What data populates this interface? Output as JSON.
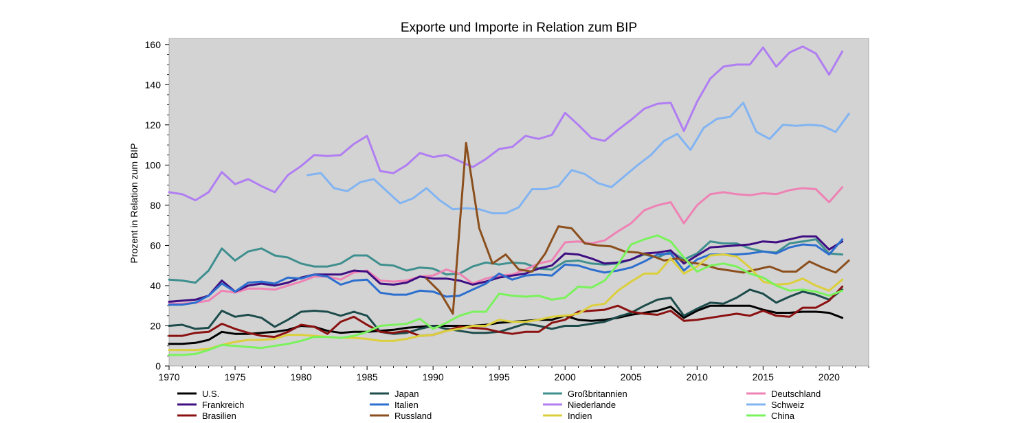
{
  "chart_data": {
    "type": "line",
    "title": "Exporte und Importe in Relation zum BIP",
    "xlabel": "",
    "ylabel": "Prozent in Relation zum BIP",
    "xlim": [
      1970,
      2023
    ],
    "ylim": [
      0,
      163
    ],
    "xticks": [
      "1970",
      "1975",
      "1980",
      "1985",
      "1990",
      "1995",
      "2000",
      "2005",
      "2010",
      "2015",
      "2020"
    ],
    "yticks": [
      "0",
      "20",
      "40",
      "60",
      "80",
      "100",
      "120",
      "140",
      "160"
    ],
    "grid": false,
    "background": "#d3d3d3",
    "legend_position": "bottom",
    "series": [
      {
        "name": "U.S.",
        "color": "#000000",
        "x_start": 1970,
        "values": [
          11,
          11,
          11.5,
          13,
          17,
          16,
          16,
          16.5,
          17,
          18,
          20,
          19.5,
          17.5,
          16.5,
          17,
          17,
          17.5,
          18,
          19,
          19.5,
          20,
          20,
          20,
          20,
          20.5,
          21.5,
          22,
          22.5,
          23,
          23,
          25,
          23,
          22.5,
          23,
          24,
          25.5,
          26.5,
          27.5,
          29.5,
          24,
          27.5,
          30,
          30,
          30,
          30,
          28,
          26.5,
          26.5,
          27,
          27,
          26.5,
          24
        ]
      },
      {
        "name": "Japan",
        "color": "#1d4b4b",
        "x_start": 1970,
        "values": [
          20,
          20.5,
          18.5,
          19,
          27.5,
          24.5,
          25.5,
          24,
          19.5,
          23,
          27,
          27.5,
          27,
          25,
          27,
          25,
          17,
          16,
          16.5,
          18.5,
          20,
          18.5,
          17.5,
          16.5,
          16.5,
          17,
          19,
          21,
          20,
          18.5,
          20,
          20,
          21,
          22,
          24.5,
          26.5,
          30,
          33,
          34,
          25,
          28.5,
          31.5,
          31,
          34,
          38,
          36,
          31.5,
          34.5,
          37,
          35.5,
          33,
          38
        ]
      },
      {
        "name": "Großbritannien",
        "color": "#3f8f8f",
        "x_start": 1970,
        "values": [
          43,
          42.5,
          41.5,
          47.5,
          58.5,
          52.5,
          57,
          58.5,
          55,
          54,
          51,
          49.5,
          49.5,
          51,
          55,
          55,
          50.5,
          50,
          47.5,
          49,
          48.5,
          45.5,
          46,
          49.5,
          51.5,
          50.5,
          51.5,
          51,
          48.5,
          48,
          52,
          52.5,
          51,
          50.5,
          51,
          53,
          55.5,
          54,
          57,
          53,
          56,
          62,
          61,
          61,
          58.5,
          57,
          56.5,
          61,
          62,
          63,
          56,
          55.5
        ]
      },
      {
        "name": "Deutschland",
        "color": "#ee82b4",
        "x_start": 1970,
        "values": [
          31,
          31,
          31.5,
          32.5,
          37.5,
          36.5,
          38.5,
          38.5,
          38,
          40,
          42,
          44.5,
          44.5,
          43,
          46.5,
          47.5,
          42.5,
          42,
          42.5,
          44.5,
          45,
          48,
          46,
          41,
          43.5,
          45,
          45.5,
          48,
          51,
          52.5,
          61.5,
          62,
          61,
          62.5,
          67,
          71,
          77.5,
          80,
          81.5,
          71,
          80,
          85.5,
          86.5,
          85.5,
          85,
          86,
          85.5,
          87.5,
          88.5,
          88,
          81.5,
          89
        ]
      },
      {
        "name": "Frankreich",
        "color": "#3e0e82",
        "x_start": 1970,
        "values": [
          32,
          32.5,
          33,
          35,
          42.5,
          37,
          40,
          41,
          40,
          41.5,
          44,
          45.5,
          45.5,
          45.5,
          47.5,
          47,
          41,
          40.5,
          41.5,
          44.5,
          43.5,
          43.5,
          42.5,
          40.5,
          42,
          44,
          45,
          46,
          48.5,
          50,
          56,
          55.5,
          53.5,
          51,
          51.5,
          53,
          56,
          56.5,
          57.5,
          51,
          55,
          59,
          59.5,
          60,
          60.5,
          62,
          61.5,
          63,
          64.5,
          64.5,
          58,
          62
        ]
      },
      {
        "name": "Italien",
        "color": "#2d6fcf",
        "x_start": 1970,
        "values": [
          30.5,
          30.5,
          31.5,
          35,
          41,
          37,
          41.5,
          42,
          41,
          44,
          43.5,
          45.5,
          44.5,
          40.5,
          42.5,
          43,
          36.5,
          35.5,
          35.5,
          37.5,
          37,
          34.5,
          35,
          38,
          41,
          46,
          43,
          45,
          45.5,
          45,
          50.5,
          50,
          48,
          46.5,
          47.5,
          49,
          52,
          55.5,
          56,
          47.5,
          53,
          55.5,
          55.5,
          55.5,
          56,
          57,
          56,
          59,
          60.5,
          60,
          55.5,
          63
        ]
      },
      {
        "name": "Niederlande",
        "color": "#b07ef2",
        "x_start": 1970,
        "values": [
          86.5,
          85.5,
          82.5,
          86.5,
          96.5,
          90.5,
          93,
          89.5,
          86.5,
          95,
          99.5,
          105,
          104.5,
          105,
          110.5,
          114.5,
          97,
          96,
          100,
          106,
          104,
          105,
          102,
          99,
          103,
          108,
          109,
          114.5,
          113,
          115,
          126,
          120,
          113.5,
          112,
          117.5,
          122.5,
          128,
          130.5,
          131,
          117,
          131.5,
          143,
          149,
          150,
          150,
          158.5,
          149,
          156,
          159,
          155.5,
          145,
          156.5
        ]
      },
      {
        "name": "Schweiz",
        "color": "#82b4f2",
        "x_start": 1980.5,
        "values": [
          95,
          96,
          88.5,
          87,
          91.5,
          93,
          87,
          81,
          83.5,
          88.5,
          82.5,
          78,
          78.5,
          78,
          76,
          76,
          79,
          88,
          88,
          89.5,
          97.5,
          95.5,
          91,
          89,
          94.5,
          100,
          105,
          112,
          115.5,
          107.5,
          118.5,
          123,
          124,
          131,
          116.5,
          113,
          120,
          119.5,
          120,
          119.5,
          116.5,
          125.5
        ]
      },
      {
        "name": "Brasilien",
        "color": "#8b1111",
        "x_start": 1970,
        "values": [
          15,
          15,
          16.5,
          17,
          21,
          18.5,
          16.5,
          15,
          14.5,
          17,
          20.5,
          19.5,
          16,
          22,
          24.5,
          20.5,
          17,
          16.5,
          17.5,
          15,
          15.5,
          17.5,
          19.5,
          19,
          18.5,
          17,
          16,
          17,
          17,
          21.5,
          23,
          27,
          27.5,
          28,
          30,
          27,
          26,
          25.5,
          27.5,
          22.5,
          23,
          24,
          25,
          26,
          25,
          27.5,
          25,
          24.5,
          29,
          29,
          32.5,
          39.5
        ]
      },
      {
        "name": "Russland",
        "color": "#8b4f1d",
        "x_start": 1989.5,
        "values": [
          43.5,
          37,
          26,
          111,
          68.5,
          51,
          55.5,
          48,
          47,
          56,
          69.5,
          68.5,
          61,
          60,
          59.5,
          57,
          56.5,
          55,
          52.5,
          53.5,
          51.5,
          50.5,
          48.5,
          47.5,
          46.5,
          48,
          49.5,
          47,
          47,
          52,
          49,
          46.5,
          52.5
        ]
      },
      {
        "name": "Indien",
        "color": "#dccf3c",
        "x_start": 1970,
        "values": [
          8,
          8,
          8,
          8.5,
          10.5,
          12,
          13,
          13,
          13.5,
          15.5,
          15.5,
          15,
          14.5,
          14,
          14,
          13.5,
          12.5,
          12.5,
          13.5,
          15,
          15.5,
          17.5,
          18.5,
          20,
          20,
          23,
          22,
          22,
          23,
          24.5,
          25,
          26,
          30,
          31,
          37.5,
          42,
          46,
          46,
          53.5,
          46,
          49.5,
          55,
          55.5,
          54.5,
          49,
          42,
          40.5,
          41,
          43.5,
          40,
          37.5,
          43
        ]
      },
      {
        "name": "China",
        "color": "#7af25c",
        "x_start": 1970,
        "values": [
          5.5,
          5.5,
          6,
          8,
          10.5,
          10,
          9.5,
          9,
          10,
          11,
          12.5,
          14.5,
          14.5,
          14,
          15,
          17,
          20,
          20.5,
          21,
          23.5,
          18.5,
          21.5,
          25,
          27,
          27,
          36,
          35,
          34.5,
          35,
          33,
          34,
          39.5,
          39,
          42.5,
          50.5,
          60.5,
          63,
          65,
          62,
          54,
          47,
          50,
          51,
          49.5,
          46,
          44,
          40,
          37.5,
          38,
          37,
          35,
          37.5
        ]
      }
    ]
  }
}
